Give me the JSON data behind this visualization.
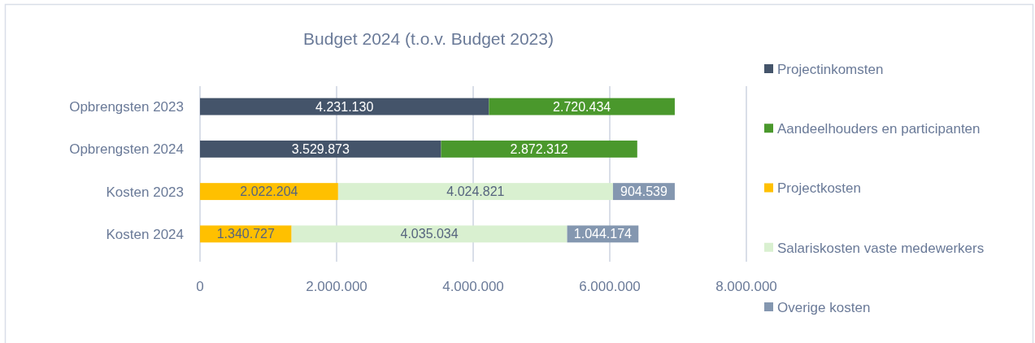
{
  "chart_data": {
    "type": "bar",
    "orientation": "horizontal",
    "stacked": true,
    "title": "Budget 2024 (t.o.v. Budget 2023)",
    "categories": [
      "Opbrengsten 2023",
      "Opbrengsten 2024",
      "Kosten 2023",
      "Kosten 2024"
    ],
    "series": [
      {
        "name": "Projectinkomsten",
        "color": "#44546a",
        "values": [
          4231130,
          3529873,
          null,
          null
        ],
        "value_labels": [
          "4.231.130",
          "3.529.873",
          null,
          null
        ]
      },
      {
        "name": "Aandeelhouders en participanten",
        "color": "#4a982c",
        "values": [
          2720434,
          2872312,
          null,
          null
        ],
        "value_labels": [
          "2.720.434",
          "2.872.312",
          null,
          null
        ]
      },
      {
        "name": "Projectkosten",
        "color": "#ffc000",
        "values": [
          null,
          null,
          2022204,
          1340727
        ],
        "value_labels": [
          null,
          null,
          "2.022.204",
          "1.340.727"
        ]
      },
      {
        "name": "Salariskosten vaste medewerkers",
        "color": "#d9f0d0",
        "values": [
          null,
          null,
          4024821,
          4035034
        ],
        "value_labels": [
          null,
          null,
          "4.024.821",
          "4.035.034"
        ]
      },
      {
        "name": "Overige kosten",
        "color": "#8497b0",
        "values": [
          null,
          null,
          904539,
          1044174
        ],
        "value_labels": [
          null,
          null,
          "904.539",
          "1.044.174"
        ]
      }
    ],
    "xlim": [
      0,
      8000000
    ],
    "xticks": [
      0,
      {
        "value": 2000000,
        "label": "2.000.000"
      },
      {
        "value": 4000000,
        "label": "4.000.000"
      },
      {
        "value": 6000000,
        "label": "6.000.000"
      },
      {
        "value": 8000000,
        "label": "8.000.000"
      }
    ],
    "grid": "x",
    "legend": "right"
  }
}
